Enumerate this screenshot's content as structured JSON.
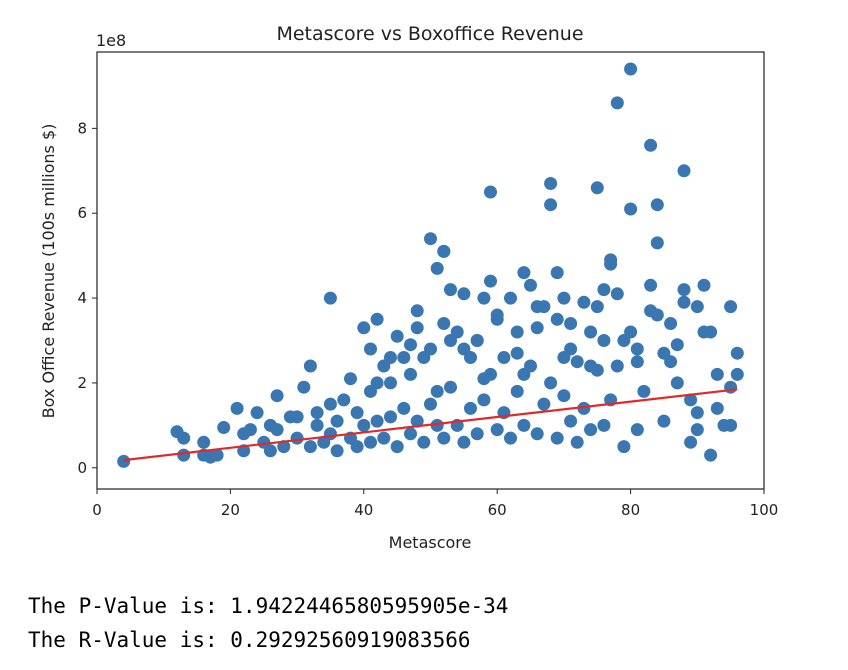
{
  "chart_data": {
    "type": "scatter",
    "title": "Metascore vs Boxoffice Revenue",
    "xlabel": "Metascore",
    "ylabel": "Box Office Revenue (100s millions $)",
    "y_offset_label": "1e8",
    "xlim": [
      0,
      100
    ],
    "ylim": [
      -0.5,
      9.8
    ],
    "x_ticks": [
      0,
      20,
      40,
      60,
      80,
      100
    ],
    "y_ticks": [
      0,
      2,
      4,
      6,
      8
    ],
    "grid": false,
    "legend": "none",
    "point_color": "#3a76af",
    "line_color": "#e2292a",
    "series": [
      {
        "kind": "points",
        "x": [
          4,
          12,
          13,
          13,
          16,
          16,
          17,
          18,
          19,
          21,
          22,
          22,
          24,
          25,
          26,
          27,
          27,
          28,
          29,
          30,
          31,
          32,
          33,
          33,
          34,
          35,
          35,
          36,
          36,
          37,
          38,
          38,
          39,
          39,
          40,
          40,
          41,
          41,
          42,
          42,
          43,
          43,
          44,
          44,
          45,
          45,
          46,
          46,
          47,
          47,
          48,
          48,
          49,
          49,
          50,
          50,
          51,
          51,
          52,
          52,
          52,
          53,
          53,
          54,
          54,
          55,
          55,
          56,
          56,
          57,
          57,
          58,
          58,
          59,
          59,
          60,
          60,
          61,
          61,
          62,
          62,
          63,
          63,
          64,
          64,
          65,
          65,
          66,
          66,
          67,
          67,
          68,
          68,
          69,
          69,
          70,
          70,
          71,
          71,
          72,
          72,
          73,
          73,
          74,
          74,
          75,
          75,
          76,
          76,
          77,
          77,
          78,
          78,
          79,
          79,
          80,
          80,
          80,
          81,
          81,
          82,
          83,
          83,
          84,
          84,
          85,
          85,
          86,
          87,
          88,
          88,
          89,
          89,
          90,
          90,
          91,
          92,
          92,
          93,
          94,
          95,
          95,
          96,
          96,
          35,
          50,
          52,
          55,
          59,
          68,
          69,
          75,
          77,
          78,
          83,
          88,
          48,
          53,
          60,
          66,
          71,
          84,
          47,
          44,
          41,
          57,
          63,
          76,
          86,
          91,
          30,
          26,
          23,
          32,
          42,
          51,
          58,
          64,
          70,
          74,
          81,
          87,
          93,
          95,
          90
        ],
        "y": [
          0.15,
          0.85,
          0.7,
          0.3,
          0.6,
          0.3,
          0.25,
          0.3,
          0.95,
          1.4,
          0.4,
          0.8,
          1.3,
          0.6,
          0.4,
          1.7,
          0.9,
          0.5,
          1.2,
          0.7,
          1.9,
          0.5,
          1.3,
          1.0,
          0.6,
          1.5,
          0.8,
          1.1,
          0.4,
          1.6,
          2.1,
          0.7,
          1.3,
          0.5,
          3.3,
          1.0,
          1.8,
          0.6,
          3.5,
          1.1,
          2.4,
          0.7,
          2.0,
          1.2,
          3.1,
          0.5,
          2.6,
          1.4,
          2.2,
          0.8,
          3.3,
          1.1,
          2.6,
          0.6,
          2.8,
          1.5,
          4.7,
          1.0,
          5.1,
          3.4,
          0.7,
          4.2,
          1.9,
          3.2,
          1.0,
          2.8,
          0.6,
          2.6,
          1.4,
          3.0,
          0.8,
          4.0,
          1.6,
          6.5,
          2.2,
          3.5,
          0.9,
          2.6,
          1.3,
          4.0,
          0.7,
          3.2,
          1.8,
          4.6,
          1.0,
          4.3,
          2.4,
          3.3,
          0.8,
          3.8,
          1.5,
          6.7,
          2.0,
          3.5,
          0.7,
          4.0,
          1.7,
          2.8,
          1.1,
          2.5,
          0.6,
          3.9,
          1.4,
          3.2,
          0.9,
          6.6,
          2.3,
          4.2,
          1.0,
          4.8,
          1.6,
          8.6,
          2.4,
          3.0,
          0.5,
          9.4,
          6.1,
          3.2,
          2.5,
          0.9,
          1.8,
          7.6,
          3.7,
          6.2,
          5.3,
          2.7,
          1.1,
          3.4,
          2.0,
          7.0,
          4.2,
          1.6,
          0.6,
          3.8,
          1.3,
          4.3,
          3.2,
          0.3,
          2.2,
          1.0,
          3.8,
          1.0,
          2.7,
          2.2,
          4.0,
          5.4,
          5.1,
          4.1,
          4.4,
          6.2,
          4.6,
          3.8,
          4.9,
          4.1,
          4.3,
          3.9,
          3.7,
          3.0,
          3.6,
          3.8,
          3.4,
          3.6,
          2.9,
          2.6,
          2.8,
          3.0,
          2.7,
          3.0,
          2.5,
          3.2,
          1.2,
          1.0,
          0.9,
          2.4,
          2.0,
          1.8,
          2.1,
          2.2,
          2.6,
          2.4,
          2.8,
          2.9,
          1.4,
          1.9,
          0.9
        ]
      },
      {
        "kind": "fit_line",
        "x": [
          4,
          96
        ],
        "y": [
          0.18,
          1.85
        ]
      }
    ]
  },
  "output": {
    "p_value_line": "The P-Value is: 1.9422446580595905e-34",
    "r_value_line": "The R-Value is: 0.29292560919083566"
  }
}
